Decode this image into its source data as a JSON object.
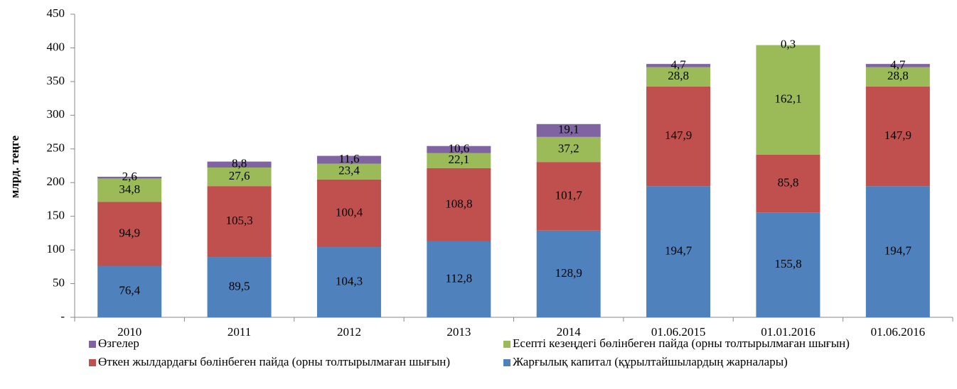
{
  "chart_data": {
    "type": "stacked_bar",
    "y_label": "млрд. теңге",
    "categories": [
      "2010",
      "2011",
      "2012",
      "2013",
      "2014",
      "01.06.2015",
      "01.01.2016",
      "01.06.2016"
    ],
    "series": [
      {
        "name": "Жарғылық капитал (құрылтайшылардың жарналары)",
        "color": "#4f81bd",
        "values": [
          76.4,
          89.5,
          104.3,
          112.8,
          128.9,
          194.7,
          155.8,
          194.7
        ],
        "value_labels": [
          "76,4",
          "89,5",
          "104,3",
          "112,8",
          "128,9",
          "194,7",
          "155,8",
          "194,7"
        ]
      },
      {
        "name": "Өткен жылдардағы бөлінбеген пайда (орны толтырылмаған шығын)",
        "color": "#c0504d",
        "values": [
          94.9,
          105.3,
          100.4,
          108.8,
          101.7,
          147.9,
          85.8,
          147.9
        ],
        "value_labels": [
          "94,9",
          "105,3",
          "100,4",
          "108,8",
          "101,7",
          "147,9",
          "85,8",
          "147,9"
        ]
      },
      {
        "name": "Есепті кезеңдегі бөлінбеген пайда (орны толтырылмаған шығын)",
        "color": "#9bbb59",
        "values": [
          34.8,
          27.6,
          23.4,
          22.1,
          37.2,
          28.8,
          162.1,
          28.8
        ],
        "value_labels": [
          "34,8",
          "27,6",
          "23,4",
          "22,1",
          "37,2",
          "28,8",
          "162,1",
          "28,8"
        ]
      },
      {
        "name": "Өзгелер",
        "color": "#8064a2",
        "values": [
          2.6,
          8.8,
          11.6,
          10.6,
          19.1,
          4.7,
          0.3,
          4.7
        ],
        "value_labels": [
          "2,6",
          "8,8",
          "11,6",
          "10,6",
          "19,1",
          "4,7",
          "0,3",
          "4,7"
        ]
      }
    ],
    "ylim": [
      0,
      450
    ],
    "yticks": [
      {
        "value": 0,
        "label": "-"
      },
      50,
      100,
      150,
      200,
      250,
      300,
      350,
      400,
      450
    ],
    "grid": false
  }
}
